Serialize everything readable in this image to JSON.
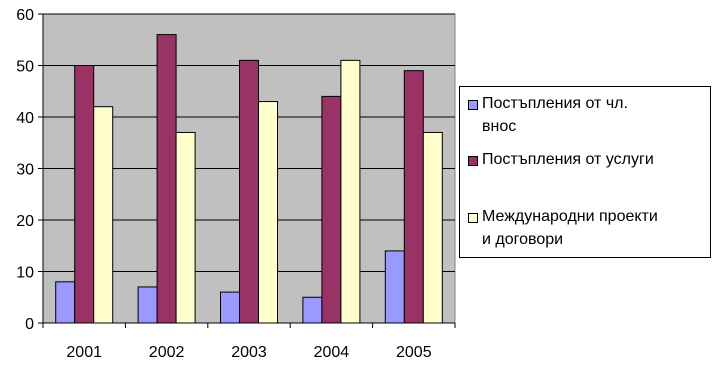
{
  "chart_data": {
    "type": "bar",
    "title": "",
    "xlabel": "",
    "ylabel": "",
    "categories": [
      "2001",
      "2002",
      "2003",
      "2004",
      "2005"
    ],
    "ylim": [
      0,
      60
    ],
    "yticks": [
      "0",
      "10",
      "20",
      "30",
      "40",
      "50",
      "60"
    ],
    "grid": "horizontal",
    "legend_position": "right",
    "series": [
      {
        "name": "Постъпления от чл. внос",
        "color": "#9999ff",
        "values": [
          8,
          7,
          6,
          5,
          14
        ]
      },
      {
        "name": "Постъпления от услуги",
        "color": "#993366",
        "values": [
          50,
          56,
          51,
          44,
          49
        ]
      },
      {
        "name": "Международни проекти и договори",
        "color": "#ffffcc",
        "values": [
          42,
          37,
          43,
          51,
          37
        ]
      }
    ],
    "plot_background": "#c0c0c0"
  },
  "legend": {
    "items": [
      {
        "line1": "Постъпления от чл.",
        "line2": "внос"
      },
      {
        "line1": "Постъпления от услуги",
        "line2": ""
      },
      {
        "line1": "Международни проекти",
        "line2": "и договори"
      }
    ]
  }
}
